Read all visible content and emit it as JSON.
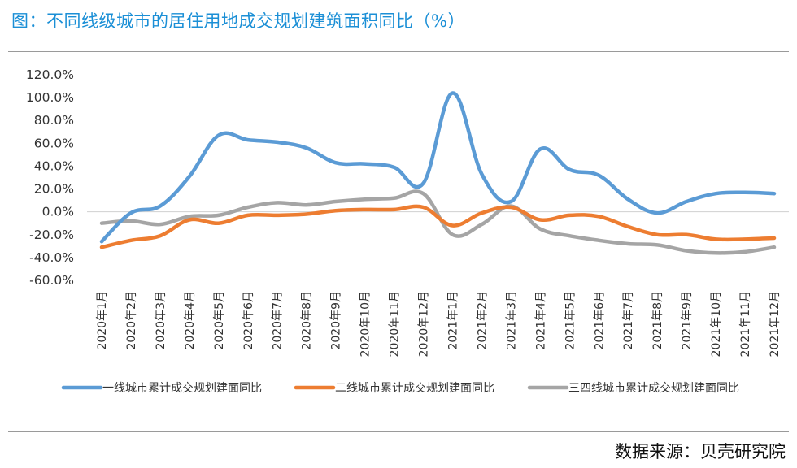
{
  "title": "图：不同线级城市的居住用地成交规划建筑面积同比（%）",
  "source": "数据来源：贝壳研究院",
  "chart_data": {
    "type": "line",
    "title": "不同线级城市的居住用地成交规划建筑面积同比（%）",
    "xlabel": "",
    "ylabel": "",
    "ylim": [
      -60,
      120
    ],
    "yticks": [
      "120.0%",
      "100.0%",
      "80.0%",
      "60.0%",
      "40.0%",
      "20.0%",
      "0.0%",
      "-20.0%",
      "-40.0%",
      "-60.0%"
    ],
    "grid": false,
    "legend": "bottom",
    "categories": [
      "2020年1月",
      "2020年2月",
      "2020年3月",
      "2020年4月",
      "2020年5月",
      "2020年6月",
      "2020年7月",
      "2020年8月",
      "2020年9月",
      "2020年10月",
      "2020年11月",
      "2020年12月",
      "2021年1月",
      "2021年2月",
      "2021年3月",
      "2021年4月",
      "2021年5月",
      "2021年6月",
      "2021年7月",
      "2021年8月",
      "2021年9月",
      "2021年10月",
      "2021年11月",
      "2021年12月"
    ],
    "series": [
      {
        "name": "一线城市累计成交规划建面同比",
        "color": "#5b9bd5",
        "values": [
          -26,
          -1,
          5,
          31,
          67,
          63,
          61,
          56,
          43,
          42,
          39,
          25,
          104,
          33,
          9,
          55,
          37,
          32,
          11,
          -1,
          9,
          16,
          17,
          16
        ]
      },
      {
        "name": "二线城市累计成交规划建面同比",
        "color": "#ed7d31",
        "values": [
          -31,
          -25,
          -21,
          -7,
          -10,
          -3,
          -3,
          -2,
          1,
          2,
          2,
          4,
          -12,
          -1,
          4,
          -7,
          -3,
          -4,
          -13,
          -20,
          -20,
          -24,
          -24,
          -23
        ]
      },
      {
        "name": "三四线城市累计成交规划建面同比",
        "color": "#a5a5a5",
        "values": [
          -10,
          -8,
          -11,
          -4,
          -3,
          4,
          8,
          6,
          9,
          11,
          12,
          16,
          -20,
          -11,
          5,
          -15,
          -21,
          -25,
          -28,
          -29,
          -34,
          -36,
          -35,
          -31
        ]
      }
    ]
  }
}
